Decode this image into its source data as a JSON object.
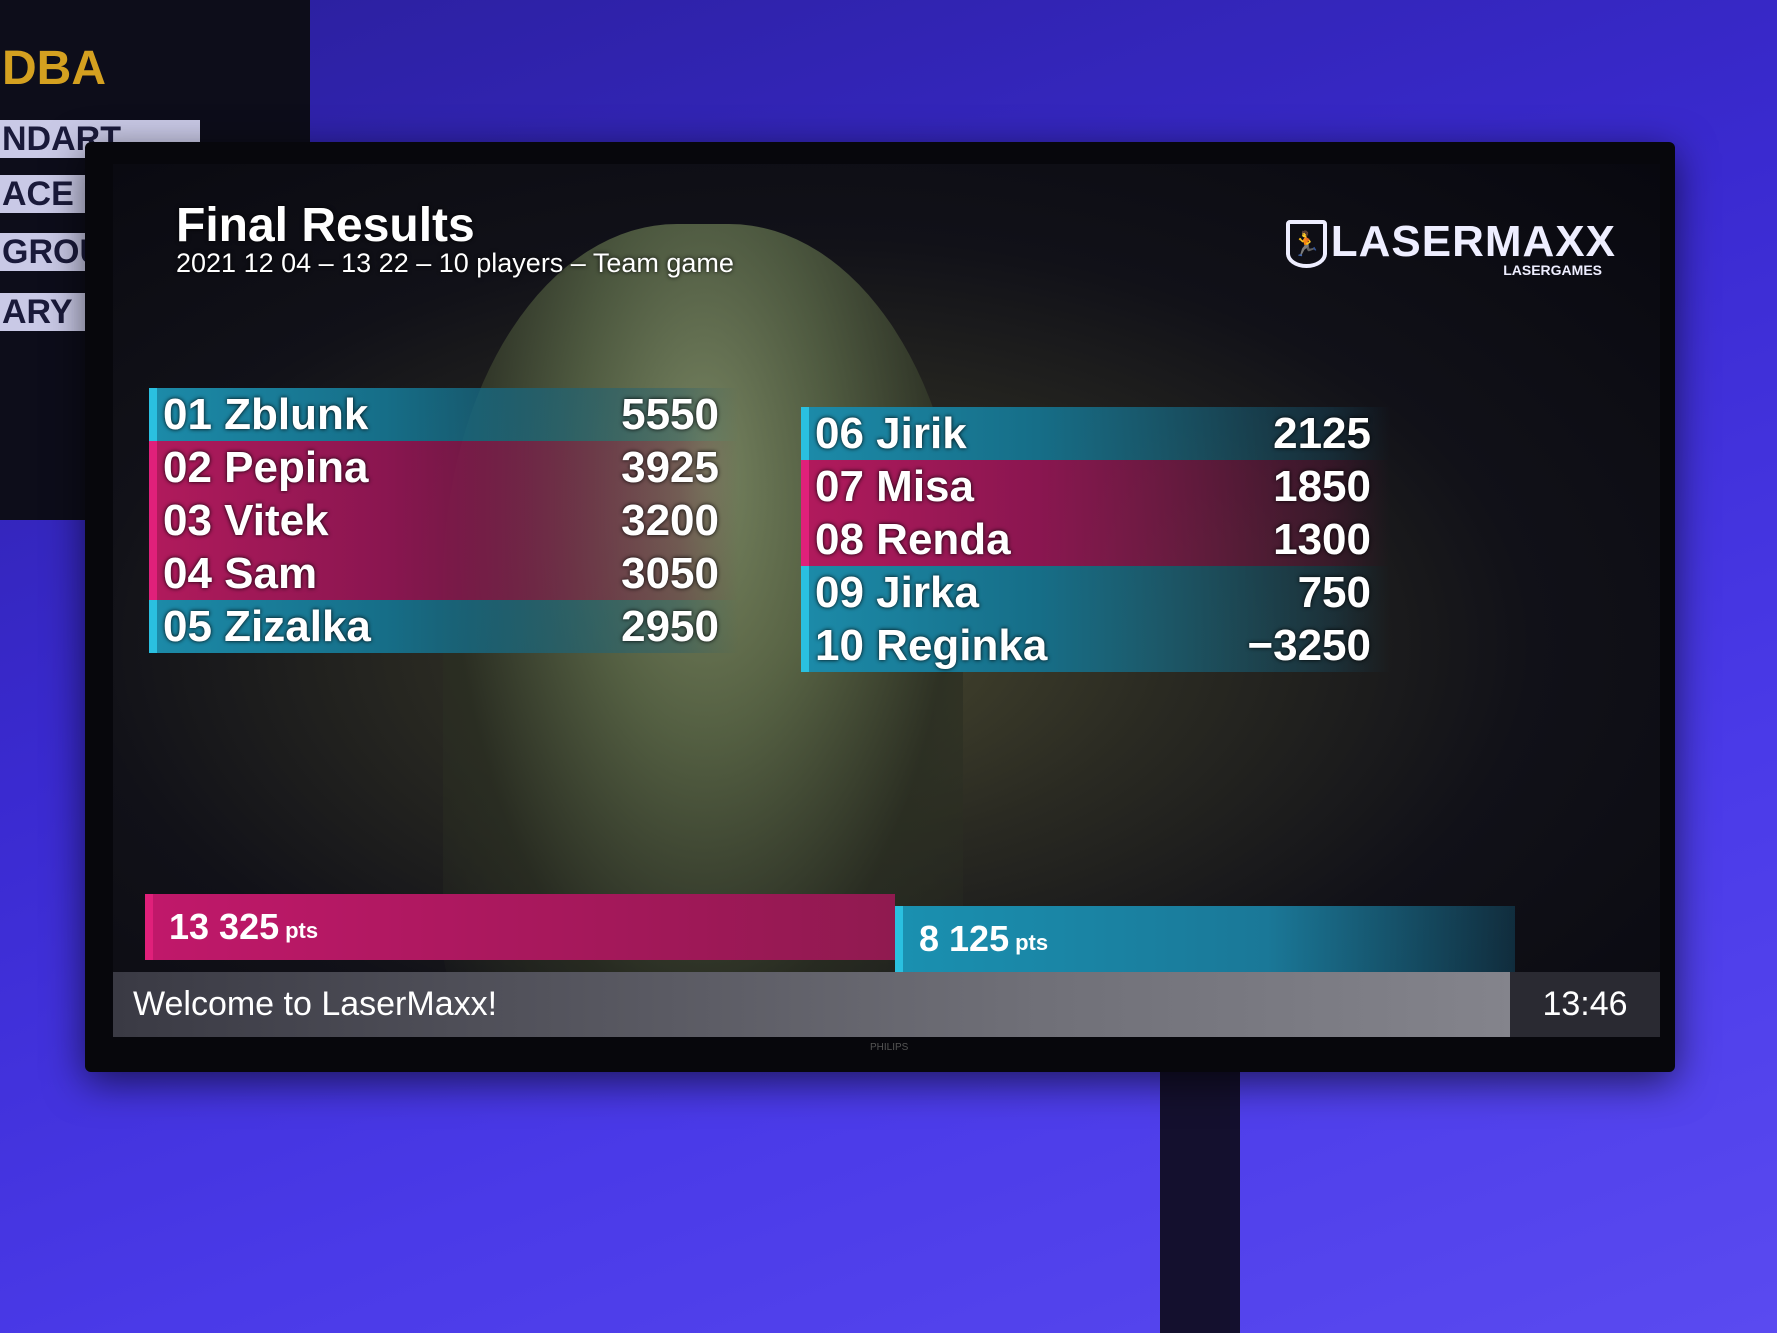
{
  "background_signs": [
    "DBA",
    "NDART",
    "ACE",
    "GROUP",
    "ARY"
  ],
  "header": {
    "title": "Final Results",
    "subtitle": "2021 12 04 – 13 22 – 10 players – Team game"
  },
  "logo": {
    "name": "LASERMAXX",
    "tagline": "LASERGAMES",
    "icon": "running-man-shield-icon"
  },
  "players_left": [
    {
      "label": "01 Zblunk",
      "score": "5550",
      "team": "blue"
    },
    {
      "label": "02 Pepina",
      "score": "3925",
      "team": "pink"
    },
    {
      "label": "03 Vitek",
      "score": "3200",
      "team": "pink"
    },
    {
      "label": "04 Sam",
      "score": "3050",
      "team": "pink"
    },
    {
      "label": "05 Zizalka",
      "score": "2950",
      "team": "blue"
    }
  ],
  "players_right": [
    {
      "label": "06 Jirik",
      "score": "2125",
      "team": "blue"
    },
    {
      "label": "07 Misa",
      "score": "1850",
      "team": "pink"
    },
    {
      "label": "08 Renda",
      "score": "1300",
      "team": "pink"
    },
    {
      "label": "09 Jirka",
      "score": "750",
      "team": "blue"
    },
    {
      "label": "10 Reginka",
      "score": "−3250",
      "team": "blue"
    }
  ],
  "teams": [
    {
      "score": "13 325",
      "unit": "pts",
      "color": "#e0207a"
    },
    {
      "score": "8 125",
      "unit": "pts",
      "color": "#2ac0e0"
    }
  ],
  "footer": {
    "message": "Welcome to LaserMaxx!",
    "clock": "13:46"
  },
  "tv_brand": "PHILIPS"
}
